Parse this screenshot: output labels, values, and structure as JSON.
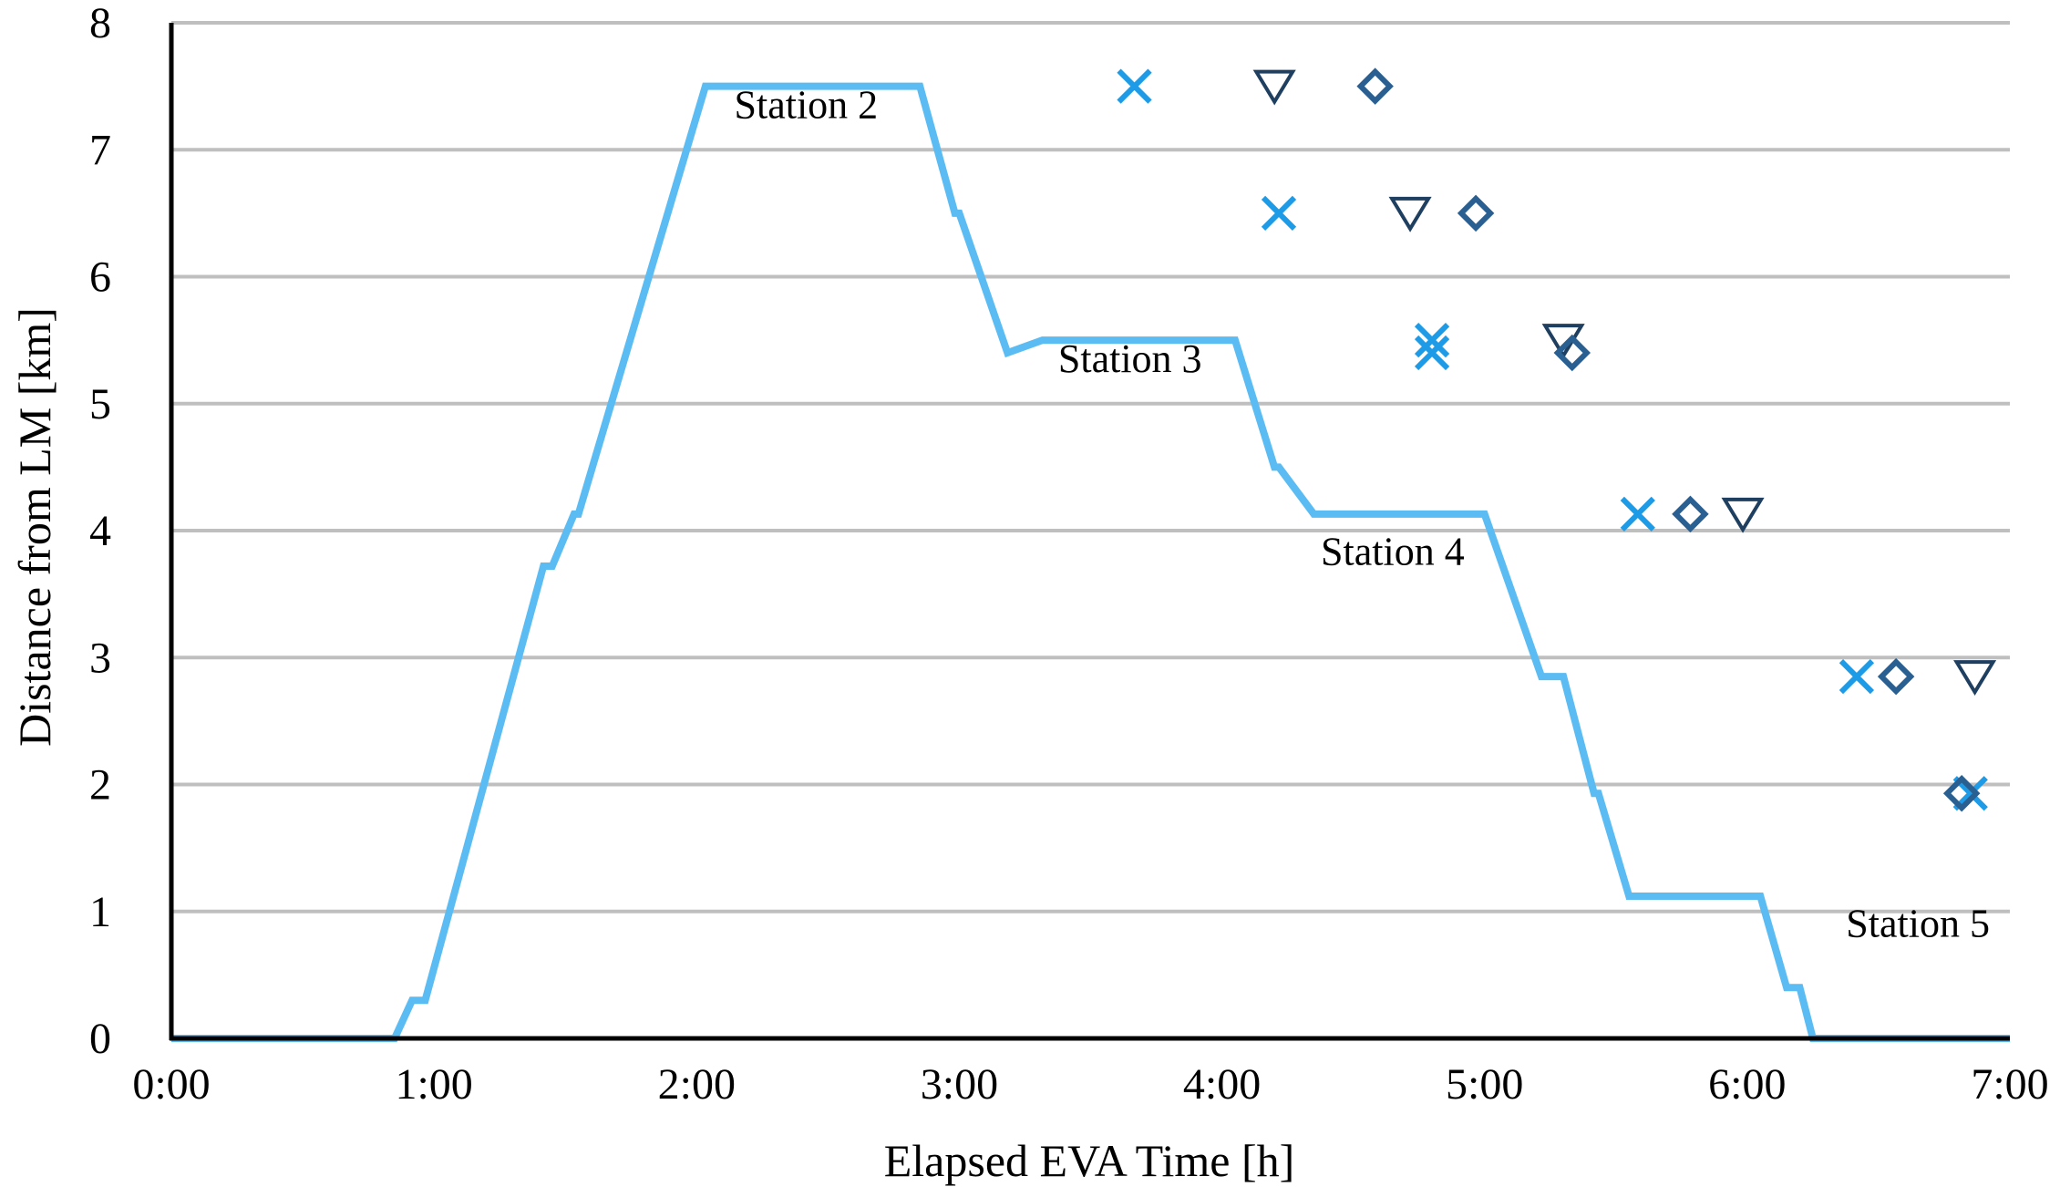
{
  "chart_data": {
    "type": "line",
    "title": "",
    "xlabel": "Elapsed EVA Time [h]",
    "ylabel": "Distance from LM [km]",
    "xlim": [
      "0:00",
      "7:00"
    ],
    "ylim": [
      0,
      8
    ],
    "grid": "horizontal",
    "legend": "none",
    "x_ticks": [
      "0:00",
      "1:00",
      "2:00",
      "3:00",
      "4:00",
      "5:00",
      "6:00",
      "7:00"
    ],
    "y_ticks": [
      "0",
      "1",
      "2",
      "3",
      "4",
      "5",
      "6",
      "7",
      "8"
    ],
    "colors": {
      "line": "#5bbcf4",
      "cross": "#1e9be6",
      "triangle": "#1f3f60",
      "diamond": "#2a5f92",
      "grid": "#bfbfbf",
      "axis": "#000000"
    },
    "series": [
      {
        "marker": "line",
        "points": [
          [
            "0:00",
            0
          ],
          [
            "0:51",
            0
          ],
          [
            "0:55",
            0.3
          ],
          [
            "0:58",
            0.3
          ],
          [
            "1:25",
            3.72
          ],
          [
            "1:27",
            3.72
          ],
          [
            "1:32",
            4.13
          ],
          [
            "1:33",
            4.13
          ],
          [
            "2:02",
            7.5
          ],
          [
            "2:51",
            7.5
          ],
          [
            "2:59",
            6.5
          ],
          [
            "3:00",
            6.5
          ],
          [
            "3:11",
            5.4
          ],
          [
            "3:19",
            5.5
          ],
          [
            "4:03",
            5.5
          ],
          [
            "4:12",
            4.5
          ],
          [
            "4:13",
            4.5
          ],
          [
            "4:21",
            4.13
          ],
          [
            "5:00",
            4.13
          ],
          [
            "5:13",
            2.85
          ],
          [
            "5:18",
            2.85
          ],
          [
            "5:25",
            1.93
          ],
          [
            "5:26",
            1.93
          ],
          [
            "5:33",
            1.12
          ],
          [
            "6:03",
            1.12
          ],
          [
            "6:09",
            0.4
          ],
          [
            "6:12",
            0.4
          ],
          [
            "6:15",
            0
          ],
          [
            "7:00",
            0
          ]
        ]
      },
      {
        "marker": "cross",
        "points": [
          [
            "3:40",
            7.5
          ],
          [
            "4:13",
            6.5
          ],
          [
            "4:48",
            5.5
          ],
          [
            "4:48",
            5.4
          ],
          [
            "5:35",
            4.13
          ],
          [
            "6:25",
            2.85
          ],
          [
            "6:51",
            1.93
          ]
        ]
      },
      {
        "marker": "triangle",
        "points": [
          [
            "4:12",
            7.5
          ],
          [
            "4:43",
            6.5
          ],
          [
            "5:18",
            5.5
          ],
          [
            "5:59",
            4.13
          ],
          [
            "6:52",
            2.85
          ]
        ]
      },
      {
        "marker": "diamond",
        "points": [
          [
            "4:35",
            7.5
          ],
          [
            "4:58",
            6.5
          ],
          [
            "5:20",
            5.4
          ],
          [
            "5:47",
            4.13
          ],
          [
            "6:34",
            2.85
          ],
          [
            "6:49",
            1.93
          ]
        ]
      }
    ],
    "annotations": [
      {
        "text": "Station 2",
        "x": "2:25",
        "y": 7.25
      },
      {
        "text": "Station 3",
        "x": "3:39",
        "y": 5.25
      },
      {
        "text": "Station 4",
        "x": "4:39",
        "y": 3.73
      },
      {
        "text": "Station 5",
        "x": "6:39",
        "y": 0.8
      }
    ]
  }
}
